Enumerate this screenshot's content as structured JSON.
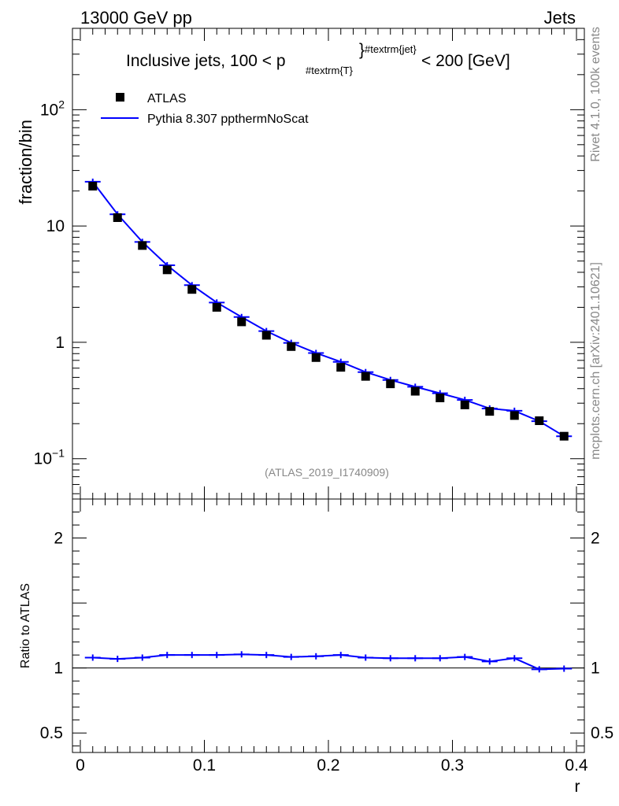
{
  "header": {
    "left": "13000 GeV pp",
    "right": "Jets"
  },
  "side_labels": {
    "top": "Rivet 4.1.0,  100k events",
    "bottom": "mcplots.cern.ch [arXiv:2401.10621]"
  },
  "colors": {
    "data": "#000000",
    "mc": "#0000ff",
    "watermark": "#888888"
  },
  "chart_data": [
    {
      "type": "scatter",
      "panel": "main",
      "title": "Inclusive jets, 100 < p",
      "title_sub": "#textrm{T}",
      "title_sup": "#textrm{jet}",
      "title_tail": " < 200 [GeV]",
      "xlabel": "",
      "ylabel": "fraction/bin",
      "yscale": "log",
      "xlim": [
        0,
        0.4
      ],
      "ylim": [
        0.045,
        500
      ],
      "y_ticks": [
        {
          "value": 0.1,
          "base": "10",
          "exp": "−1"
        },
        {
          "value": 1,
          "base": "1",
          "exp": ""
        },
        {
          "value": 10,
          "base": "10",
          "exp": ""
        },
        {
          "value": 100,
          "base": "10",
          "exp": "2"
        }
      ],
      "legend": {
        "position": "top-left",
        "entries": [
          {
            "label": "ATLAS",
            "style": "marker"
          },
          {
            "label": "Pythia 8.307 ppthermNoScat",
            "style": "line"
          }
        ]
      },
      "watermark": "(ATLAS_2019_I1740909)",
      "x": [
        0.01,
        0.03,
        0.05,
        0.07,
        0.09,
        0.11,
        0.13,
        0.15,
        0.17,
        0.19,
        0.21,
        0.23,
        0.25,
        0.27,
        0.29,
        0.31,
        0.33,
        0.35,
        0.37,
        0.39
      ],
      "series": [
        {
          "name": "ATLAS",
          "values": [
            22.0,
            11.8,
            6.8,
            4.2,
            2.85,
            2.0,
            1.5,
            1.15,
            0.92,
            0.74,
            0.61,
            0.51,
            0.44,
            0.38,
            0.333,
            0.29,
            0.255,
            0.235,
            0.212,
            0.156
          ]
        },
        {
          "name": "Pythia 8.307 ppthermNoScat",
          "values": [
            24.0,
            12.6,
            7.3,
            4.6,
            3.1,
            2.2,
            1.65,
            1.25,
            0.99,
            0.81,
            0.68,
            0.555,
            0.475,
            0.415,
            0.365,
            0.32,
            0.27,
            0.258,
            0.21,
            0.156
          ]
        }
      ]
    },
    {
      "type": "line",
      "panel": "ratio",
      "xlabel": "r",
      "ylabel": "Ratio to ATLAS",
      "xlim": [
        0,
        0.4
      ],
      "ylim": [
        0.35,
        2.3
      ],
      "x_ticks": [
        {
          "value": 0,
          "label": "0"
        },
        {
          "value": 0.1,
          "label": "0.1"
        },
        {
          "value": 0.2,
          "label": "0.2"
        },
        {
          "value": 0.3,
          "label": "0.3"
        },
        {
          "value": 0.4,
          "label": "0.4"
        }
      ],
      "y_ticks": [
        {
          "value": 0.5,
          "label": "0.5"
        },
        {
          "value": 1,
          "label": "1"
        },
        {
          "value": 2,
          "label": "2"
        }
      ],
      "reference_line": 1,
      "x": [
        0.01,
        0.03,
        0.05,
        0.07,
        0.09,
        0.11,
        0.13,
        0.15,
        0.17,
        0.19,
        0.21,
        0.23,
        0.25,
        0.27,
        0.29,
        0.31,
        0.33,
        0.35,
        0.37,
        0.39
      ],
      "series": [
        {
          "name": "Pythia 8.307 ppthermNoScat",
          "values": [
            1.08,
            1.07,
            1.08,
            1.1,
            1.1,
            1.1,
            1.105,
            1.1,
            1.085,
            1.09,
            1.1,
            1.08,
            1.075,
            1.075,
            1.075,
            1.085,
            1.05,
            1.075,
            0.99,
            0.995
          ]
        }
      ]
    }
  ]
}
